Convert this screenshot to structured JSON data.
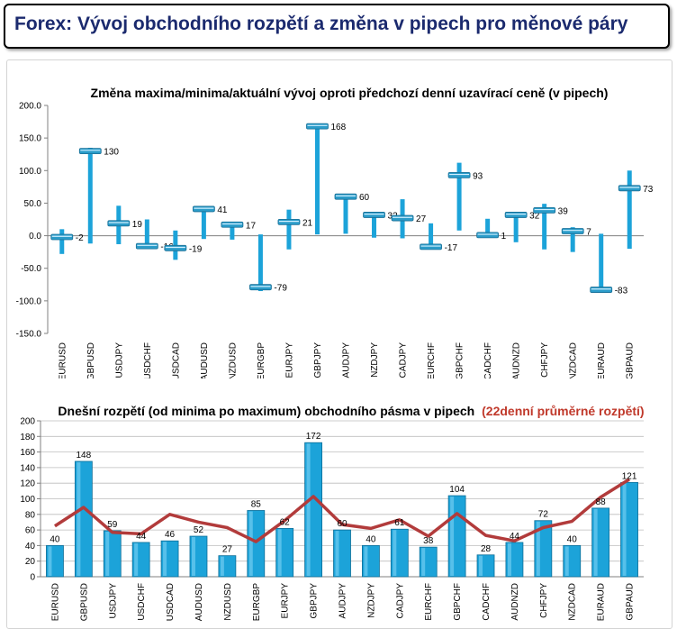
{
  "header": {
    "title": "Forex: Vývoj obchodního rozpětí a změna v pipech pro měnové páry"
  },
  "chart_data": [
    {
      "type": "range",
      "title": "Změna maxima/minima/aktuální vývoj oproti předchozí denní uzavírací ceně (v pipech)",
      "categories": [
        "EURUSD",
        "GBPUSD",
        "USDJPY",
        "USDCHF",
        "USDCAD",
        "AUDUSD",
        "NZDUSD",
        "EURGBP",
        "EURJPY",
        "GBPJPY",
        "AUDJPY",
        "NZDJPY",
        "CADJPY",
        "EURCHF",
        "GBPCHF",
        "CADCHF",
        "AUDNZD",
        "CHFJPY",
        "NZDCAD",
        "EURAUD",
        "GBPAUD"
      ],
      "high": [
        10,
        135,
        46,
        25,
        8,
        42,
        20,
        2,
        40,
        172,
        62,
        36,
        56,
        19,
        112,
        26,
        33,
        49,
        13,
        3,
        100
      ],
      "low": [
        -28,
        -12,
        -13,
        -19,
        -37,
        -5,
        -6,
        -85,
        -21,
        2,
        3,
        -3,
        -4,
        -18,
        8,
        0,
        -10,
        -21,
        -25,
        -84,
        -20
      ],
      "current": [
        -2,
        130,
        19,
        -16,
        -19,
        41,
        17,
        -79,
        21,
        168,
        60,
        32,
        27,
        -17,
        93,
        1,
        32,
        39,
        7,
        -83,
        73
      ],
      "current_labels": [
        "-2",
        "130",
        "19",
        "-16",
        "-19",
        "41",
        "17",
        "-79",
        "21",
        "168",
        "60",
        "32",
        "27",
        "-17",
        "93",
        "1",
        "32",
        "39",
        "7",
        "-83",
        "73"
      ],
      "ylim": [
        -150,
        200
      ],
      "yticks": [
        "-150.0",
        "-100.0",
        "-50.0",
        "0.0",
        "50.0",
        "100.0",
        "150.0",
        "200.0"
      ],
      "colors": {
        "bar": "#1ca3d9",
        "marker": "#2b9cc9"
      }
    },
    {
      "type": "bar",
      "title": "Dnešní rozpětí (od minima po maximum) obchodního pásma v pipech",
      "title_highlight": "(22denní průměrné rozpětí)",
      "categories": [
        "EURUSD",
        "GBPUSD",
        "USDJPY",
        "USDCHF",
        "USDCAD",
        "AUDUSD",
        "NZDUSD",
        "EURGBP",
        "EURJPY",
        "GBPJPY",
        "AUDJPY",
        "NZDJPY",
        "CADJPY",
        "EURCHF",
        "GBPCHF",
        "CADCHF",
        "AUDNZD",
        "CHFJPY",
        "NZDCAD",
        "EURAUD",
        "GBPAUD"
      ],
      "series": [
        {
          "values": [
            40,
            148,
            59,
            44,
            46,
            52,
            27,
            85,
            62,
            172,
            60,
            40,
            61,
            38,
            104,
            28,
            44,
            72,
            40,
            88,
            121
          ]
        },
        {
          "values": [
            65,
            89,
            57,
            55,
            80,
            70,
            63,
            45,
            72,
            103,
            67,
            62,
            73,
            52,
            81,
            53,
            46,
            63,
            71,
            102,
            125
          ]
        }
      ],
      "value_labels": [
        "40",
        "148",
        "59",
        "44",
        "46",
        "52",
        "27",
        "85",
        "62",
        "172",
        "60",
        "40",
        "61",
        "38",
        "104",
        "28",
        "44",
        "72",
        "40",
        "88",
        "121"
      ],
      "ylim": [
        0,
        200
      ],
      "yticks": [
        "0",
        "20",
        "40",
        "60",
        "80",
        "100",
        "120",
        "140",
        "160",
        "180",
        "200"
      ],
      "grid": true,
      "colors": {
        "bar": "#1ca3d9",
        "bar_dark": "#0d6e98",
        "line": "#b23b3b",
        "title_red": "#c0392b"
      }
    }
  ]
}
